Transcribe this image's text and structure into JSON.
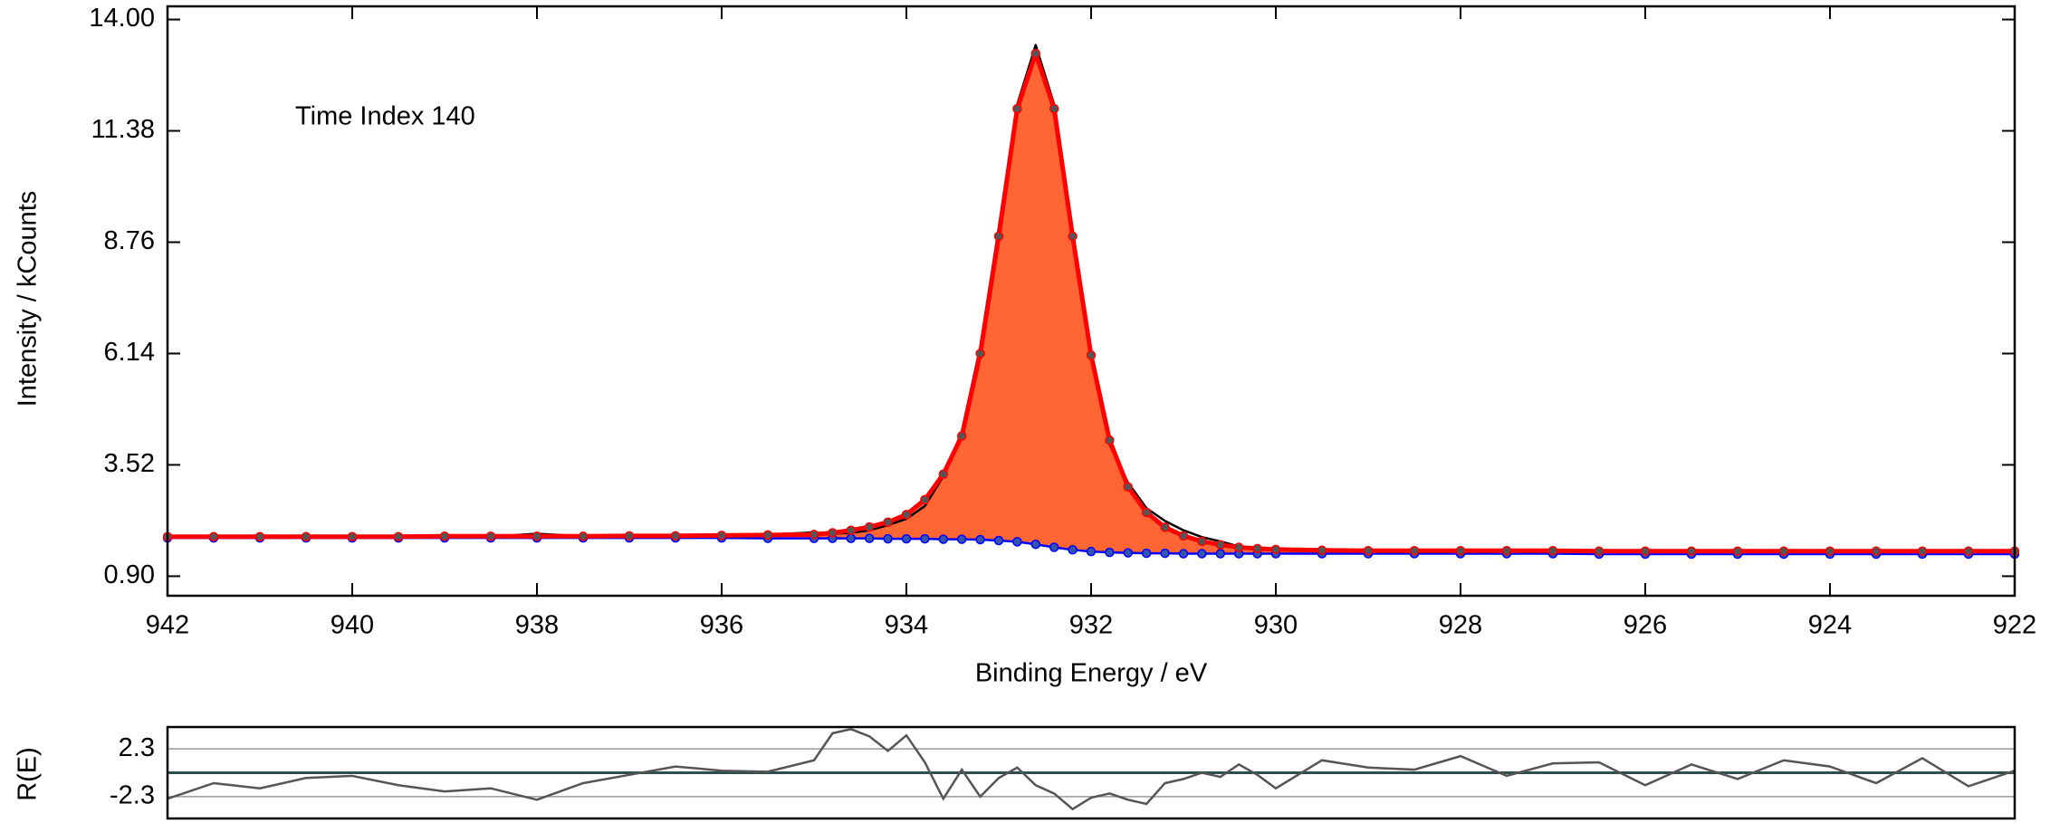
{
  "chart_data": {
    "type": "line",
    "annotation": "Time Index  140",
    "xlabel": "Binding Energy / eV",
    "ylabel": "Intensity / kCounts",
    "xlim": [
      942,
      922
    ],
    "xticks": [
      942,
      940,
      938,
      936,
      934,
      932,
      930,
      928,
      926,
      924,
      922
    ],
    "ylim": [
      0.44,
      14.31
    ],
    "yticks": [
      {
        "value": 0.9,
        "label": "0.90"
      },
      3.52,
      6.14,
      8.76,
      11.38,
      {
        "value": 14,
        "label": "14.00"
      }
    ],
    "fill_color": "#ff6633",
    "x": [
      942,
      941.5,
      941,
      940.5,
      940,
      939.5,
      939,
      938.5,
      938,
      937.5,
      937,
      936.5,
      936,
      935.5,
      935,
      934.8,
      934.6,
      934.4,
      934.2,
      934,
      933.8,
      933.6,
      933.4,
      933.2,
      933,
      932.8,
      932.6,
      932.4,
      932.2,
      932,
      931.8,
      931.6,
      931.4,
      931.2,
      931,
      930.8,
      930.6,
      930.4,
      930.2,
      930,
      929.5,
      929,
      928.5,
      928,
      927.5,
      927,
      926.5,
      926,
      925.5,
      925,
      924.5,
      924,
      923.5,
      923,
      922.5,
      922
    ],
    "series": [
      {
        "color": "#0000ff",
        "values": [
          1.8,
          1.8,
          1.8,
          1.8,
          1.8,
          1.8,
          1.8,
          1.8,
          1.8,
          1.8,
          1.8,
          1.8,
          1.8,
          1.79,
          1.79,
          1.79,
          1.79,
          1.79,
          1.78,
          1.78,
          1.78,
          1.77,
          1.77,
          1.76,
          1.74,
          1.71,
          1.65,
          1.58,
          1.52,
          1.48,
          1.46,
          1.45,
          1.44,
          1.44,
          1.43,
          1.43,
          1.43,
          1.43,
          1.43,
          1.43,
          1.43,
          1.43,
          1.43,
          1.43,
          1.43,
          1.43,
          1.42,
          1.42,
          1.42,
          1.42,
          1.42,
          1.42,
          1.42,
          1.42,
          1.42,
          1.42
        ]
      },
      {
        "color": "#000000",
        "values": [
          1.85,
          1.84,
          1.82,
          1.83,
          1.82,
          1.83,
          1.84,
          1.83,
          1.9,
          1.84,
          1.85,
          1.86,
          1.85,
          1.88,
          1.93,
          1.9,
          1.92,
          1.98,
          2.1,
          2.25,
          2.55,
          3.25,
          4.3,
          6.3,
          9.1,
          12.0,
          13.4,
          12.0,
          8.95,
          6.0,
          4.0,
          3.1,
          2.5,
          2.2,
          1.98,
          1.82,
          1.72,
          1.6,
          1.55,
          1.52,
          1.51,
          1.49,
          1.51,
          1.5,
          1.48,
          1.49,
          1.47,
          1.48,
          1.5,
          1.49,
          1.48,
          1.49,
          1.48,
          1.47,
          1.49,
          1.48
        ]
      },
      {
        "color": "#ff0000",
        "values": [
          1.83,
          1.83,
          1.83,
          1.83,
          1.83,
          1.83,
          1.84,
          1.84,
          1.84,
          1.84,
          1.85,
          1.85,
          1.86,
          1.87,
          1.88,
          1.92,
          1.98,
          2.06,
          2.17,
          2.35,
          2.7,
          3.3,
          4.2,
          6.14,
          8.9,
          11.9,
          13.2,
          11.9,
          8.9,
          6.1,
          4.1,
          3.0,
          2.4,
          2.05,
          1.85,
          1.72,
          1.64,
          1.58,
          1.55,
          1.53,
          1.51,
          1.5,
          1.5,
          1.5,
          1.5,
          1.5,
          1.49,
          1.49,
          1.49,
          1.49,
          1.49,
          1.49,
          1.49,
          1.49,
          1.49,
          1.49
        ]
      }
    ],
    "residual": {
      "ylabel": "R(E)",
      "color": "#555555",
      "ylim": [
        -4.4,
        4.4
      ],
      "yticks": [
        2.3,
        -2.3
      ],
      "values": [
        -2.5,
        -1.0,
        -1.5,
        -0.5,
        -0.3,
        -1.2,
        -1.8,
        -1.5,
        -2.6,
        -1.0,
        -0.2,
        0.6,
        0.2,
        0.1,
        1.2,
        3.8,
        4.2,
        3.5,
        2.1,
        3.6,
        1.0,
        -2.5,
        0.3,
        -2.3,
        -0.5,
        0.5,
        -1.2,
        -2.0,
        -3.5,
        -2.4,
        -2.0,
        -2.6,
        -3.0,
        -1.0,
        -0.6,
        0.0,
        -0.4,
        0.8,
        -0.2,
        -1.5,
        1.2,
        0.5,
        0.3,
        1.6,
        -0.3,
        0.9,
        1.0,
        -1.2,
        0.8,
        -0.6,
        1.2,
        0.6,
        -1.0,
        1.4,
        -1.3,
        0.2
      ]
    }
  }
}
